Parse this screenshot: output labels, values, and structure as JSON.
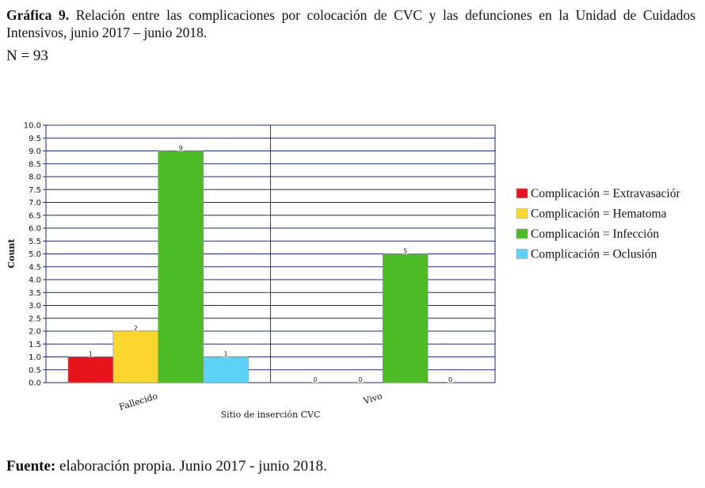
{
  "caption": {
    "title_bold": "Gráfica 9.",
    "title_text": " Relación entre las complicaciones por colocación de CVC y las defunciones en la Unidad de Cuidados Intensivos, junio 2017 – junio 2018.",
    "n_text": "N = 93"
  },
  "footer": {
    "source_bold": "Fuente:",
    "source_text": " elaboración propia. Junio 2017 - junio 2018."
  },
  "colors": {
    "Extravasación": "#e8141c",
    "Hematoma": "#fcd52e",
    "Infección": "#4cbb26",
    "Oclusión": "#5cd2f6",
    "grid": "#1f2a6b"
  },
  "chart_data": {
    "type": "bar",
    "categories": [
      "Fallecido",
      "Vivo"
    ],
    "series": [
      {
        "name": "Complicación = Extravasación",
        "legend_text": "Complicación = Extravasaciór",
        "values": [
          1,
          0
        ]
      },
      {
        "name": "Complicación = Hematoma",
        "legend_text": "Complicación = Hematoma",
        "values": [
          2,
          0
        ]
      },
      {
        "name": "Complicación = Infección",
        "legend_text": "Complicación = Infección",
        "values": [
          9,
          5
        ]
      },
      {
        "name": "Complicación = Oclusión",
        "legend_text": "Complicación = Oclusión",
        "values": [
          1,
          0
        ]
      }
    ],
    "xlabel": "Sitio de inserción CVC",
    "ylabel": "Count",
    "ylim": [
      0,
      10
    ],
    "ytick_step": 0.5,
    "grid": true,
    "legend_position": "right"
  }
}
